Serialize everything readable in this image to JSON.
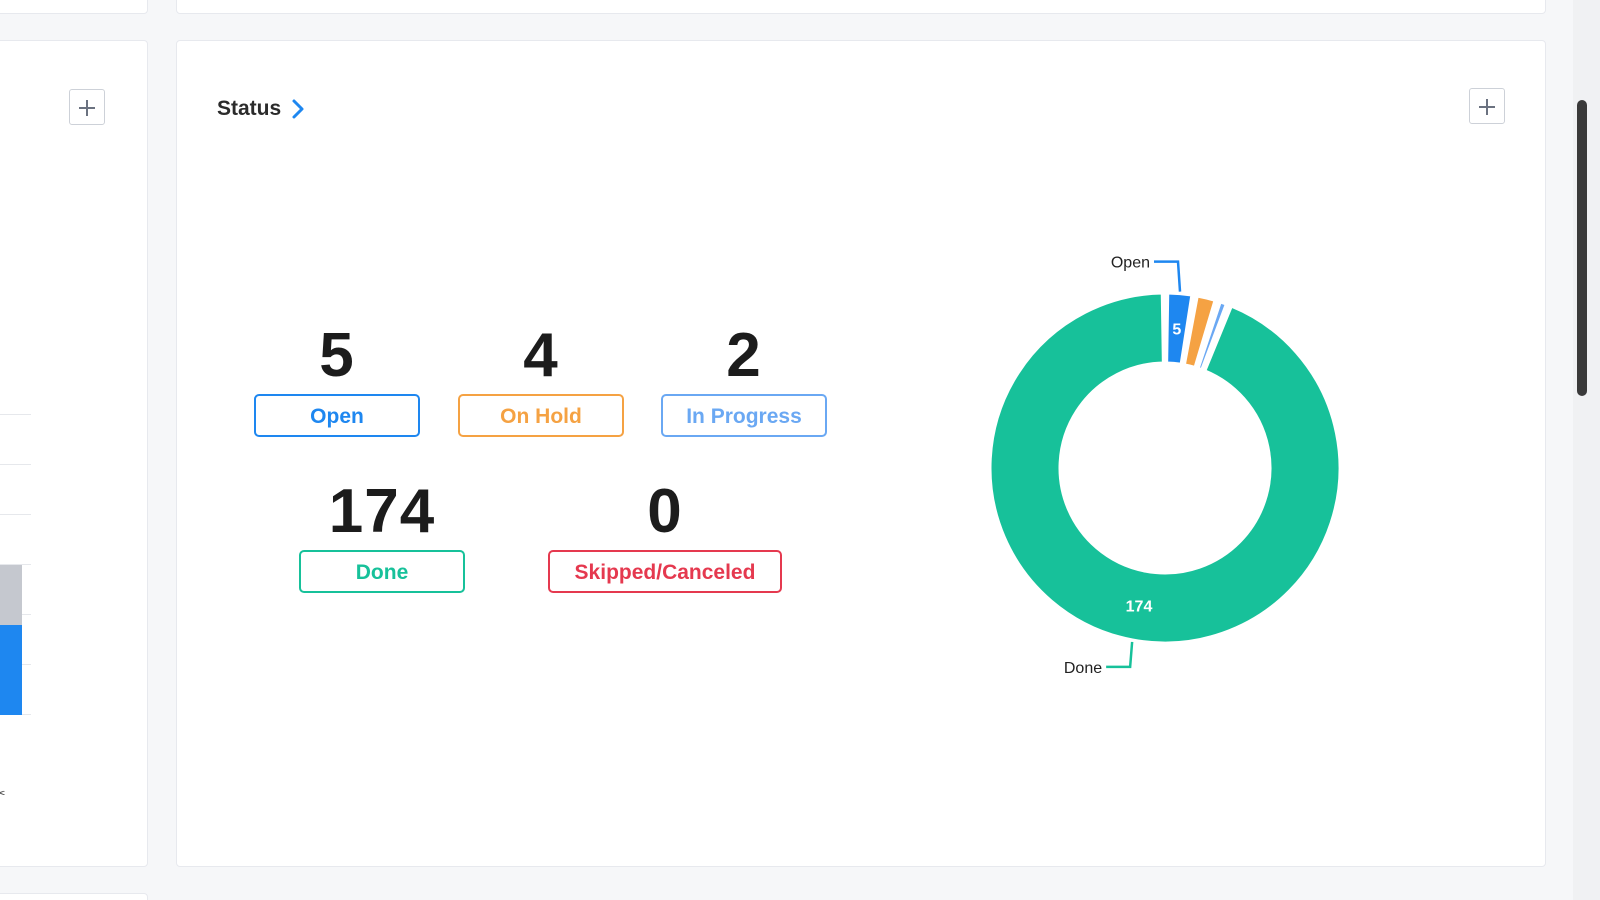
{
  "status_card": {
    "title": "Status",
    "add_label": "+"
  },
  "left_card": {
    "add_label": "+"
  },
  "stats": [
    {
      "value": "5",
      "label": "Open",
      "color": "#1e87f0"
    },
    {
      "value": "4",
      "label": "On Hold",
      "color": "#f5a243"
    },
    {
      "value": "2",
      "label": "In Progress",
      "color": "#6aa8f3"
    },
    {
      "value": "174",
      "label": "Done",
      "color": "#17c19a"
    },
    {
      "value": "0",
      "label": "Skipped/Canceled",
      "color": "#e5394f"
    }
  ],
  "chart_data": {
    "type": "pie",
    "categories": [
      "Open",
      "On Hold",
      "In Progress",
      "Done",
      "Skipped/Canceled"
    ],
    "values": [
      5,
      4,
      2,
      174,
      0
    ],
    "colors": [
      "#1e87f0",
      "#f5a243",
      "#6aa8f3",
      "#17c19a",
      "#e5394f"
    ],
    "data_labels": [
      "5",
      "",
      "",
      "174",
      ""
    ],
    "callout_labels": [
      "Open",
      "Done"
    ],
    "donut": true
  }
}
